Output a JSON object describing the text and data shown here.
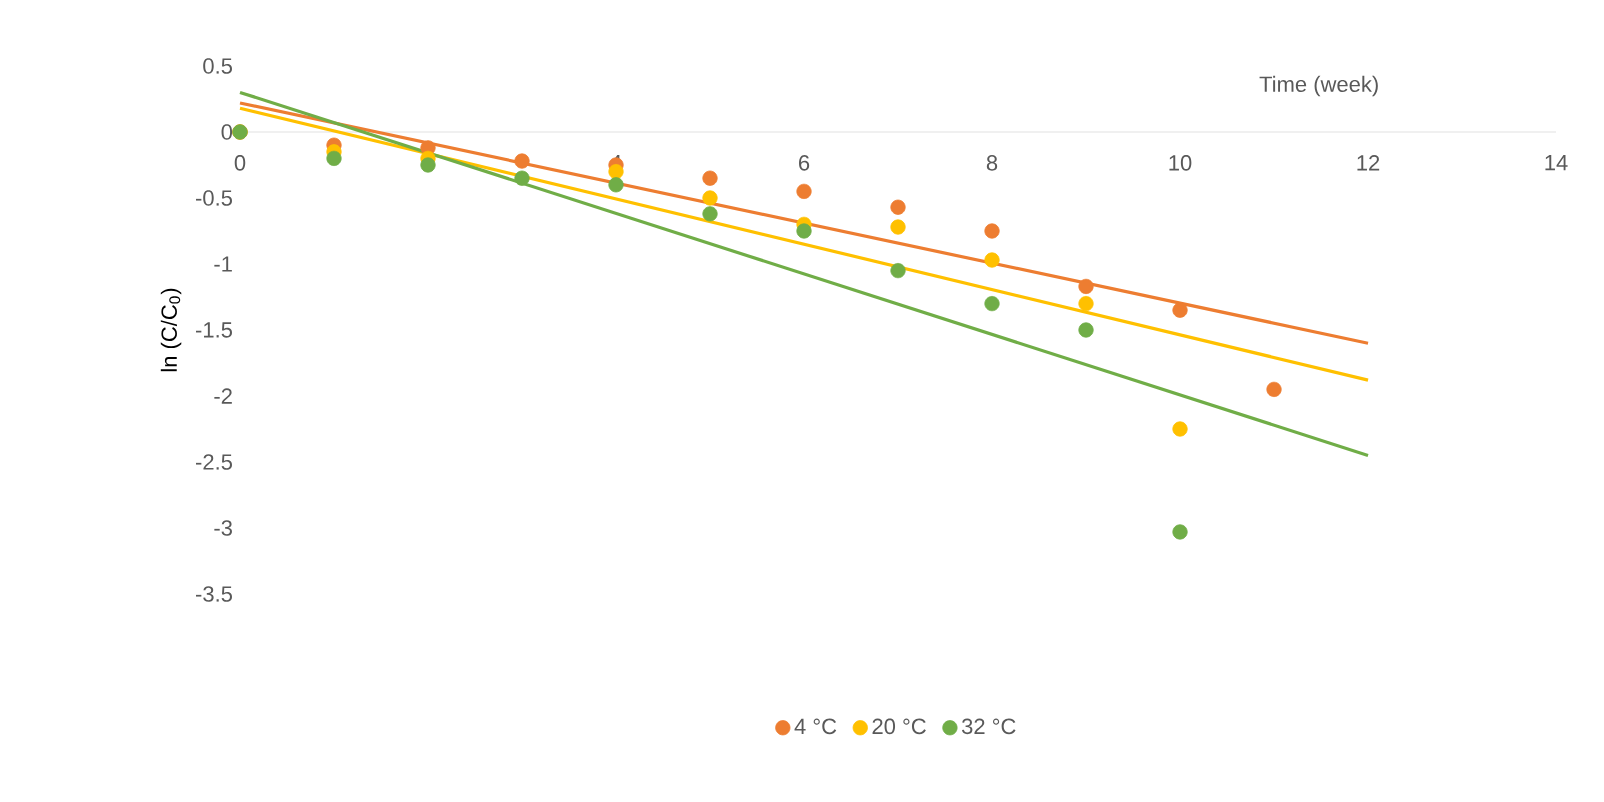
{
  "chart_data": {
    "type": "scatter",
    "xlabel": "Time (week)",
    "ylabel": "ln (C/C$_{0}$)",
    "xlim": [
      0,
      14
    ],
    "xticks": [
      0,
      2,
      4,
      6,
      8,
      10,
      12,
      14
    ],
    "ylim": [
      -3.5,
      0.5
    ],
    "yticks": [
      0.5,
      0,
      -0.5,
      -1,
      -1.5,
      -2,
      -2.5,
      -3,
      -3.5
    ],
    "legend": "bottom",
    "grid": false,
    "series": [
      {
        "name": "4 °C",
        "color": "#ed7d31",
        "marker": "circle",
        "x": [
          0,
          1,
          2,
          3,
          4,
          5,
          6,
          7,
          8,
          9,
          10,
          11
        ],
        "values": [
          0,
          -0.1,
          -0.12,
          -0.22,
          -0.25,
          -0.35,
          -0.45,
          -0.57,
          -0.75,
          -1.17,
          -1.35,
          -1.95
        ]
      },
      {
        "name": "20 °C",
        "color": "#ffc000",
        "marker": "circle",
        "x": [
          0,
          1,
          2,
          3,
          4,
          5,
          6,
          7,
          8,
          9,
          10
        ],
        "values": [
          0,
          -0.15,
          -0.2,
          null,
          -0.3,
          -0.5,
          -0.7,
          -0.72,
          -0.97,
          -1.3,
          -2.25
        ]
      },
      {
        "name": "32 °C",
        "color": "#70ad47",
        "marker": "circle",
        "x": [
          0,
          1,
          2,
          3,
          4,
          5,
          6,
          7,
          8,
          9,
          10
        ],
        "values": [
          0,
          -0.2,
          -0.25,
          -0.35,
          -0.4,
          -0.62,
          -0.75,
          -1.05,
          -1.3,
          -1.5,
          -3.03
        ]
      },
      {
        "type": "line",
        "marker": "none",
        "color": "#ed7d31",
        "x": [
          0,
          12
        ],
        "values": [
          0.22,
          -1.6
        ]
      },
      {
        "type": "line",
        "marker": "none",
        "color": "#ffc000",
        "x": [
          0,
          12
        ],
        "values": [
          0.18,
          -1.88
        ]
      },
      {
        "type": "line",
        "marker": "none",
        "color": "#70ad47",
        "x": [
          0,
          12
        ],
        "values": [
          0.3,
          -2.45
        ]
      }
    ]
  }
}
